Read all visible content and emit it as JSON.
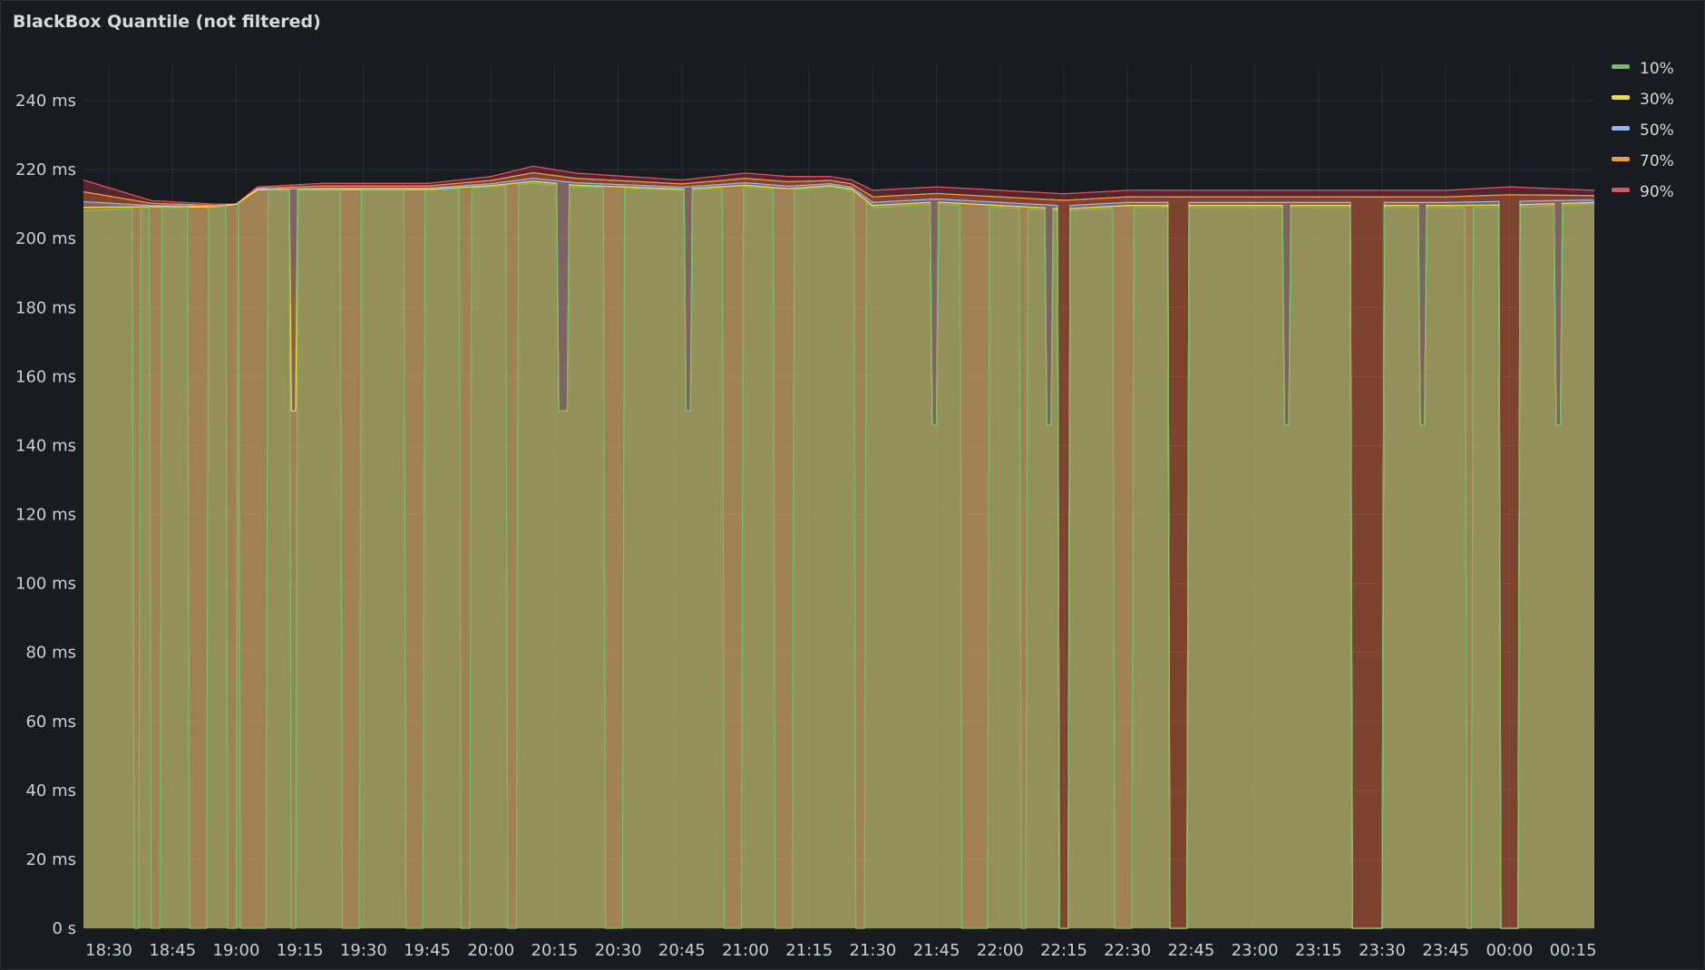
{
  "panel": {
    "title": "BlackBox Quantile (not filtered)"
  },
  "chart_data": {
    "type": "area",
    "title": "BlackBox Quantile (not filtered)",
    "xlabel": "",
    "ylabel": "",
    "ylim": [
      0,
      250
    ],
    "y_ticks": [
      0,
      20,
      40,
      60,
      80,
      100,
      120,
      140,
      160,
      180,
      200,
      220,
      240
    ],
    "y_tick_labels": [
      "0 s",
      "20 ms",
      "40 ms",
      "60 ms",
      "80 ms",
      "100 ms",
      "120 ms",
      "140 ms",
      "160 ms",
      "180 ms",
      "200 ms",
      "220 ms",
      "240 ms"
    ],
    "x_range": [
      "18:24",
      "00:20"
    ],
    "x_ticks": [
      "18:30",
      "18:45",
      "19:00",
      "19:15",
      "19:30",
      "19:45",
      "20:00",
      "20:15",
      "20:30",
      "20:45",
      "21:00",
      "21:15",
      "21:30",
      "21:45",
      "22:00",
      "22:15",
      "22:30",
      "22:45",
      "23:00",
      "23:15",
      "23:30",
      "23:45",
      "00:00",
      "00:15"
    ],
    "grid": true,
    "legend_position": "top-right",
    "series": [
      {
        "name": "10%",
        "color": "#73bf69"
      },
      {
        "name": "30%",
        "color": "#fade2a"
      },
      {
        "name": "50%",
        "color": "#8ab8ff"
      },
      {
        "name": "70%",
        "color": "#ff9830"
      },
      {
        "name": "90%",
        "color": "#f2495c"
      }
    ],
    "baseline": {
      "x": [
        "18:24",
        "18:40",
        "18:55",
        "19:00",
        "19:05",
        "19:20",
        "19:45",
        "20:00",
        "20:10",
        "20:20",
        "20:45",
        "21:00",
        "21:10",
        "21:20",
        "21:25",
        "21:30",
        "21:45",
        "22:00",
        "22:15",
        "22:30",
        "22:45",
        "23:00",
        "23:15",
        "23:30",
        "23:45",
        "00:00",
        "00:20"
      ],
      "p10": [
        208,
        209,
        209,
        210,
        214,
        214,
        214,
        215,
        216,
        215,
        214,
        215,
        214,
        215,
        214,
        209,
        210,
        209,
        208,
        209,
        209,
        209,
        209,
        209,
        209,
        209,
        210
      ],
      "p90": [
        217,
        211,
        210,
        210,
        215,
        216,
        216,
        218,
        221,
        219,
        217,
        219,
        218,
        218,
        217,
        214,
        215,
        214,
        213,
        214,
        214,
        214,
        214,
        214,
        214,
        215,
        214
      ]
    },
    "dips": [
      {
        "series": "10%",
        "from": "18:36",
        "to": "18:37",
        "value": 0
      },
      {
        "series": "10%",
        "from": "18:40",
        "to": "18:42",
        "value": 0
      },
      {
        "series": "10%",
        "from": "18:49",
        "to": "18:53",
        "value": 0
      },
      {
        "series": "10%",
        "from": "18:58",
        "to": "19:00",
        "value": 0
      },
      {
        "series": "10%",
        "from": "19:01",
        "to": "19:07",
        "value": 0
      },
      {
        "series": "10%",
        "from": "19:13",
        "to": "19:14",
        "value": 0
      },
      {
        "series": "10%",
        "from": "19:25",
        "to": "19:29",
        "value": 0
      },
      {
        "series": "10%",
        "from": "19:40",
        "to": "19:44",
        "value": 0
      },
      {
        "series": "10%",
        "from": "19:53",
        "to": "19:55",
        "value": 0
      },
      {
        "series": "10%",
        "from": "20:04",
        "to": "20:06",
        "value": 0
      },
      {
        "series": "10%",
        "from": "20:27",
        "to": "20:31",
        "value": 0
      },
      {
        "series": "10%",
        "from": "20:55",
        "to": "20:59",
        "value": 0
      },
      {
        "series": "10%",
        "from": "21:07",
        "to": "21:11",
        "value": 0
      },
      {
        "series": "10%",
        "from": "21:26",
        "to": "21:28",
        "value": 0
      },
      {
        "series": "10%",
        "from": "21:51",
        "to": "21:57",
        "value": 0
      },
      {
        "series": "10%",
        "from": "22:05",
        "to": "22:06",
        "value": 0
      },
      {
        "series": "10%",
        "from": "22:27",
        "to": "22:31",
        "value": 0
      },
      {
        "series": "10%",
        "from": "23:50",
        "to": "23:51",
        "value": 0
      },
      {
        "series": "50%",
        "from": "22:14",
        "to": "22:16",
        "value": 0
      },
      {
        "series": "50%",
        "from": "22:40",
        "to": "22:44",
        "value": 0
      },
      {
        "series": "50%",
        "from": "23:23",
        "to": "23:30",
        "value": 0
      },
      {
        "series": "50%",
        "from": "23:58",
        "to": "00:02",
        "value": 0
      },
      {
        "series": "30%",
        "from": "19:13",
        "to": "19:14",
        "value": 150
      },
      {
        "series": "30%",
        "from": "20:16",
        "to": "20:18",
        "value": 150
      },
      {
        "series": "30%",
        "from": "20:46",
        "to": "20:47",
        "value": 150
      },
      {
        "series": "30%",
        "from": "21:44",
        "to": "21:45",
        "value": 146
      },
      {
        "series": "30%",
        "from": "22:11",
        "to": "22:12",
        "value": 146
      },
      {
        "series": "30%",
        "from": "23:07",
        "to": "23:08",
        "value": 146
      },
      {
        "series": "30%",
        "from": "23:39",
        "to": "23:40",
        "value": 146
      },
      {
        "series": "30%",
        "from": "00:11",
        "to": "00:12",
        "value": 146
      }
    ]
  }
}
